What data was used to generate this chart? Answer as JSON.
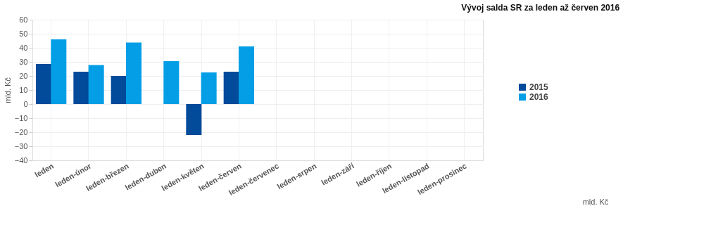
{
  "chart_data": {
    "type": "bar",
    "title": "Vývoj salda SR za leden až červen 2016",
    "ylabel": "mld. Kč",
    "categories": [
      "leden",
      "leden-únor",
      "leden-březen",
      "leden-duben",
      "leden-květen",
      "leden-červen",
      "leden-červenec",
      "leden-srpen",
      "leden-září",
      "leden-říjen",
      "leden-listopad",
      "leden-prosinec"
    ],
    "series": [
      {
        "name": "2015",
        "color": "#024a9a",
        "values": [
          28.5,
          23,
          20,
          null,
          -22,
          23,
          null,
          null,
          null,
          null,
          null,
          null
        ]
      },
      {
        "name": "2016",
        "color": "#039ee6",
        "values": [
          46,
          27.8,
          43.7,
          30.5,
          22.5,
          41,
          null,
          null,
          null,
          null,
          null,
          null
        ]
      }
    ],
    "ylim": [
      -40,
      60
    ],
    "yticks": [
      -40,
      -30,
      -20,
      -10,
      0,
      10,
      20,
      30,
      40,
      50,
      60
    ],
    "grid": true,
    "legend": "right",
    "annotations": [
      "mld. Kč"
    ]
  }
}
